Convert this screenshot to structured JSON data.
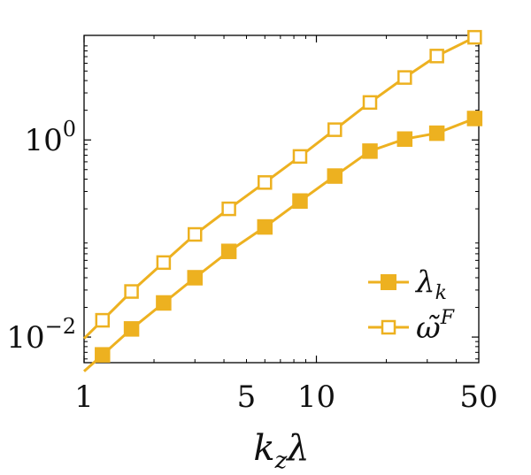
{
  "chart_data": {
    "type": "line",
    "xscale": "log",
    "yscale": "log",
    "xlim": [
      1,
      50
    ],
    "ylim": [
      0.0055,
      11.5
    ],
    "xticks": [
      {
        "value": 1,
        "label": "1"
      },
      {
        "value": 5,
        "label": "5"
      },
      {
        "value": 10,
        "label": "10"
      },
      {
        "value": 50,
        "label": "50"
      }
    ],
    "yticks": [
      {
        "value": 0.01,
        "base": "10",
        "exp": "−2"
      },
      {
        "value": 1,
        "base": "10",
        "exp": "0"
      }
    ],
    "xlabel": {
      "main": "k",
      "sub": "z",
      "tail": "λ"
    },
    "grid": false,
    "legend_position": "lower-right",
    "color": "#EDB120",
    "series": [
      {
        "name": "λ_k",
        "legend": {
          "main": "λ",
          "sub": "k",
          "sup": ""
        },
        "marker": "square-filled",
        "extends_to_xmin": true,
        "x": [
          1.2,
          1.6,
          2.2,
          3.0,
          4.2,
          6.0,
          8.5,
          12,
          17,
          24,
          33,
          48
        ],
        "y": [
          0.0066,
          0.0121,
          0.0222,
          0.04,
          0.074,
          0.131,
          0.24,
          0.43,
          0.77,
          1.02,
          1.17,
          1.65
        ]
      },
      {
        "name": "ω̃^F",
        "legend": {
          "main": "ω̃",
          "sub": "",
          "sup": "F"
        },
        "marker": "square-open",
        "extends_to_xmin": true,
        "x": [
          1.2,
          1.6,
          2.2,
          3.0,
          4.2,
          6.0,
          8.5,
          12,
          17,
          24,
          33,
          48
        ],
        "y": [
          0.0148,
          0.029,
          0.057,
          0.11,
          0.2,
          0.37,
          0.68,
          1.27,
          2.4,
          4.3,
          7.1,
          11.0
        ]
      }
    ]
  }
}
